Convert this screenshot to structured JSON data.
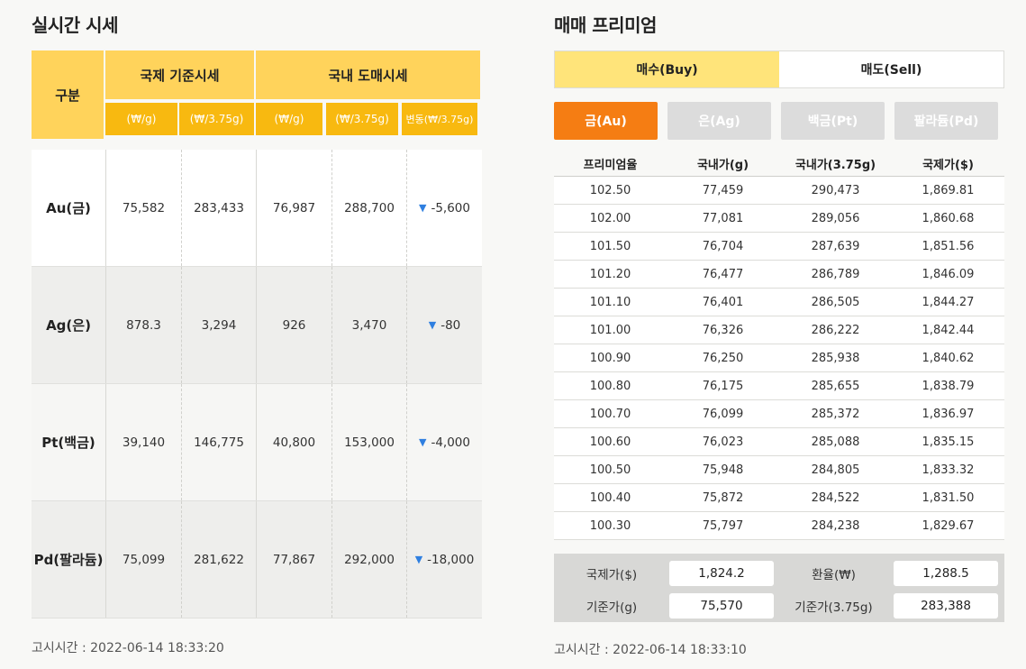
{
  "realtime": {
    "title": "실시간 시세",
    "headers": {
      "category": "구분",
      "intl": "국제 기준시세",
      "domestic": "국내 도매시세",
      "units": [
        "(₩/g)",
        "(₩/3.75g)",
        "(₩/g)",
        "(₩/3.75g)",
        "변동(₩/3.75g)"
      ]
    },
    "rows": [
      {
        "name": "Au(금)",
        "intl_g": "75,582",
        "intl_375": "283,433",
        "dom_g": "76,987",
        "dom_375": "288,700",
        "change": "-5,600",
        "change_icon": "down-triangle"
      },
      {
        "name": "Ag(은)",
        "intl_g": "878.3",
        "intl_375": "3,294",
        "dom_g": "926",
        "dom_375": "3,470",
        "change": "-80",
        "change_icon": "down-triangle"
      },
      {
        "name": "Pt(백금)",
        "intl_g": "39,140",
        "intl_375": "146,775",
        "dom_g": "40,800",
        "dom_375": "153,000",
        "change": "-4,000",
        "change_icon": "down-triangle"
      },
      {
        "name": "Pd(팔라듐)",
        "intl_g": "75,099",
        "intl_375": "281,622",
        "dom_g": "77,867",
        "dom_375": "292,000",
        "change": "-18,000",
        "change_icon": "down-triangle"
      }
    ],
    "notice": "고시시간 : 2022-06-14 18:33:20"
  },
  "premium": {
    "title": "매매 프리미엄",
    "tabs": [
      "매수(Buy)",
      "매도(Sell)"
    ],
    "active_tab": 0,
    "metals": [
      "금(Au)",
      "은(Ag)",
      "백금(Pt)",
      "팔라듐(Pd)"
    ],
    "active_metal": 0,
    "columns": [
      "프리미엄율",
      "국내가(g)",
      "국내가(3.75g)",
      "국제가($)"
    ],
    "rows": [
      [
        "102.50",
        "77,459",
        "290,473",
        "1,869.81"
      ],
      [
        "102.00",
        "77,081",
        "289,056",
        "1,860.68"
      ],
      [
        "101.50",
        "76,704",
        "287,639",
        "1,851.56"
      ],
      [
        "101.20",
        "76,477",
        "286,789",
        "1,846.09"
      ],
      [
        "101.10",
        "76,401",
        "286,505",
        "1,844.27"
      ],
      [
        "101.00",
        "76,326",
        "286,222",
        "1,842.44"
      ],
      [
        "100.90",
        "76,250",
        "285,938",
        "1,840.62"
      ],
      [
        "100.80",
        "76,175",
        "285,655",
        "1,838.79"
      ],
      [
        "100.70",
        "76,099",
        "285,372",
        "1,836.97"
      ],
      [
        "100.60",
        "76,023",
        "285,088",
        "1,835.15"
      ],
      [
        "100.50",
        "75,948",
        "284,805",
        "1,833.32"
      ],
      [
        "100.40",
        "75,872",
        "284,522",
        "1,831.50"
      ],
      [
        "100.30",
        "75,797",
        "284,238",
        "1,829.67"
      ]
    ],
    "summary": {
      "intl_price_label": "국제가($)",
      "intl_price": "1,824.2",
      "fx_label": "환율(₩)",
      "fx": "1,288.5",
      "base_g_label": "기준가(g)",
      "base_g": "75,570",
      "base_375_label": "기준가(3.75g)",
      "base_375": "283,388"
    },
    "notice": "고시시간 : 2022-06-14 18:33:10"
  },
  "colors": {
    "header_yellow": "#ffd35b",
    "unit_orange": "#f8b910",
    "active_metal": "#f57d13",
    "active_tab": "#ffe47a",
    "down_arrow": "#2f7fe0"
  }
}
